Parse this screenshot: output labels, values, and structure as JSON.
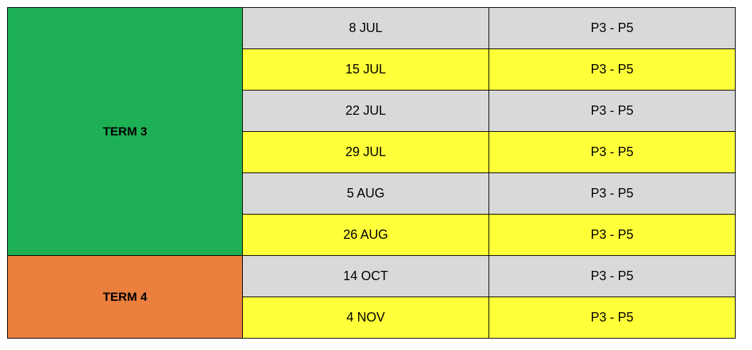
{
  "colors": {
    "term3": "#1db055",
    "term4": "#ea7f3e",
    "row_gray": "#d9d9d9",
    "row_yellow": "#ffff3a"
  },
  "terms": [
    {
      "label": "TERM 3",
      "color": "#1db055",
      "rows": [
        {
          "date": "8 JUL",
          "level": "P3 - P5",
          "bg": "#d9d9d9"
        },
        {
          "date": "15 JUL",
          "level": "P3 - P5",
          "bg": "#ffff3a"
        },
        {
          "date": "22 JUL",
          "level": "P3 - P5",
          "bg": "#d9d9d9"
        },
        {
          "date": "29 JUL",
          "level": "P3 - P5",
          "bg": "#ffff3a"
        },
        {
          "date": "5 AUG",
          "level": "P3 - P5",
          "bg": "#d9d9d9"
        },
        {
          "date": "26 AUG",
          "level": "P3 - P5",
          "bg": "#ffff3a"
        }
      ]
    },
    {
      "label": "TERM 4",
      "color": "#ea7f3e",
      "rows": [
        {
          "date": "14 OCT",
          "level": "P3 - P5",
          "bg": "#d9d9d9"
        },
        {
          "date": "4 NOV",
          "level": "P3 - P5",
          "bg": "#ffff3a"
        }
      ]
    }
  ]
}
